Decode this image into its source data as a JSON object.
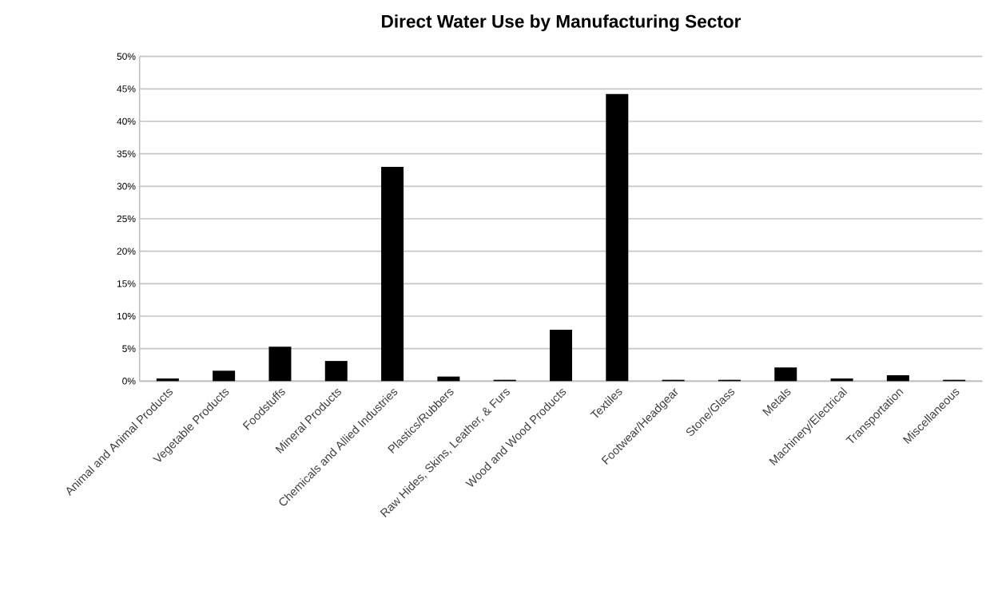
{
  "chart_data": {
    "type": "bar",
    "title": "Direct Water Use by Manufacturing Sector",
    "categories": [
      "Animal and Animal Products",
      "Vegetable Products",
      "Foodstuffs",
      "Mineral Products",
      "Chemicals and Allied Industries",
      "Plastics/Rubbers",
      "Raw Hides, Skins, Leather, & Furs",
      "Wood and Wood Products",
      "Textiles",
      "Footwear/Headgear",
      "Stone/Glass",
      "Metals",
      "Machinery/Electrical",
      "Transportation",
      "Miscellaneous"
    ],
    "values": [
      0.4,
      1.6,
      5.3,
      3.1,
      33.0,
      0.7,
      0.2,
      7.9,
      44.2,
      0.2,
      0.2,
      2.1,
      0.4,
      0.9,
      0.2
    ],
    "color": "#000000",
    "ylim": [
      0,
      50
    ],
    "yticks": [
      {
        "value": 0,
        "label": "0%"
      },
      {
        "value": 5,
        "label": "5%"
      },
      {
        "value": 10,
        "label": "10%"
      },
      {
        "value": 15,
        "label": "15%"
      },
      {
        "value": 20,
        "label": "20%"
      },
      {
        "value": 25,
        "label": "25%"
      },
      {
        "value": 30,
        "label": "30%"
      },
      {
        "value": 35,
        "label": "35%"
      },
      {
        "value": 40,
        "label": "40%"
      },
      {
        "value": 45,
        "label": "45%"
      },
      {
        "value": 50,
        "label": "50%"
      }
    ],
    "grid": "y"
  }
}
